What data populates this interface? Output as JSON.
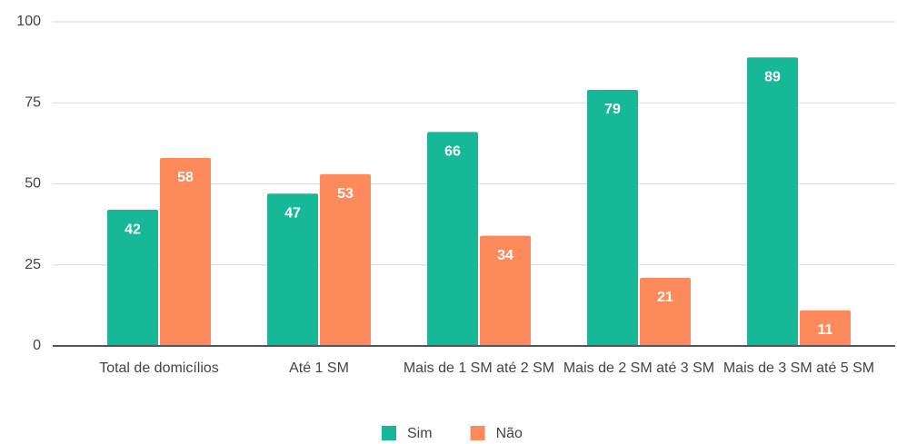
{
  "chart_data": {
    "type": "bar",
    "categories": [
      "Total de domicílios",
      "Até 1 SM",
      "Mais de 1 SM até 2 SM",
      "Mais de 2 SM até 3 SM",
      "Mais de 3 SM até 5 SM"
    ],
    "series": [
      {
        "name": "Sim",
        "color": "#17b897",
        "values": [
          42,
          47,
          66,
          79,
          89
        ]
      },
      {
        "name": "Não",
        "color": "#fd8a5d",
        "values": [
          58,
          53,
          34,
          21,
          11
        ]
      }
    ],
    "ylim": [
      0,
      100
    ],
    "yticks": [
      0,
      25,
      50,
      75,
      100
    ],
    "grid": true,
    "legend": "bottom"
  }
}
